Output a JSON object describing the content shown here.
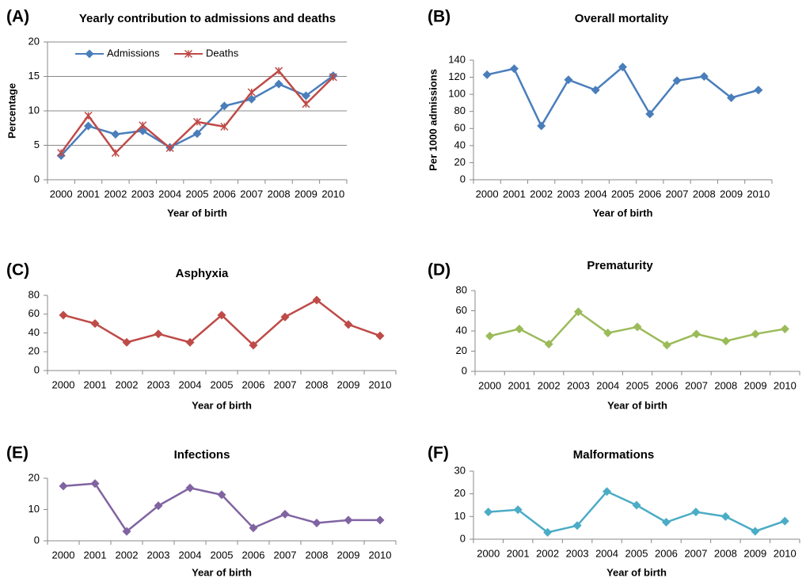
{
  "chart_data": [
    {
      "type": "line",
      "panel": "(A)",
      "title": "Yearly contribution to admissions and deaths",
      "xlabel": "Year of birth",
      "ylabel": "Percentage",
      "categories": [
        "2000",
        "2001",
        "2002",
        "2003",
        "2004",
        "2005",
        "2006",
        "2007",
        "2008",
        "2009",
        "2010"
      ],
      "series": [
        {
          "name": "Admissions",
          "color": "#4a7ebb",
          "marker": "diamond",
          "values": [
            3.5,
            7.8,
            6.6,
            7.1,
            4.7,
            6.7,
            10.7,
            11.7,
            13.9,
            12.2,
            15.1
          ]
        },
        {
          "name": "Deaths",
          "color": "#be4b48",
          "marker": "star",
          "values": [
            3.9,
            9.3,
            3.9,
            7.9,
            4.6,
            8.4,
            7.7,
            12.7,
            15.8,
            11.0,
            14.9
          ]
        }
      ],
      "ylim": [
        0,
        20
      ],
      "yticks": [
        0,
        5,
        10,
        15,
        20
      ],
      "grid": true,
      "legend": "top"
    },
    {
      "type": "line",
      "panel": "(B)",
      "title": "Overall mortality",
      "xlabel": "Year of birth",
      "ylabel": "Per 1000 admissions",
      "categories": [
        "2000",
        "2001",
        "2002",
        "2003",
        "2004",
        "2005",
        "2006",
        "2007",
        "2008",
        "2009",
        "2010"
      ],
      "series": [
        {
          "color": "#4a7ebb",
          "marker": "diamond",
          "values": [
            123,
            130,
            63,
            117,
            105,
            132,
            77,
            116,
            121,
            96,
            105
          ]
        }
      ],
      "ylim": [
        0,
        140
      ],
      "yticks": [
        0,
        20,
        40,
        60,
        80,
        100,
        120,
        140
      ],
      "grid": false
    },
    {
      "type": "line",
      "panel": "(C)",
      "title": "Asphyxia",
      "xlabel": "Year of birth",
      "categories": [
        "2000",
        "2001",
        "2002",
        "2003",
        "2004",
        "2005",
        "2006",
        "2007",
        "2008",
        "2009",
        "2010"
      ],
      "series": [
        {
          "color": "#be4b48",
          "marker": "diamond",
          "values": [
            59,
            50,
            30,
            39,
            30,
            59,
            27,
            57,
            75,
            49,
            37
          ]
        }
      ],
      "ylim": [
        0,
        80
      ],
      "yticks": [
        0,
        20,
        40,
        60,
        80
      ],
      "grid": false
    },
    {
      "type": "line",
      "panel": "(D)",
      "title": "Prematurity",
      "xlabel": "Year of birth",
      "categories": [
        "2000",
        "2001",
        "2002",
        "2003",
        "2004",
        "2005",
        "2006",
        "2007",
        "2008",
        "2009",
        "2010"
      ],
      "series": [
        {
          "color": "#9bbb59",
          "marker": "diamond",
          "values": [
            35,
            42,
            27,
            59,
            38,
            44,
            26,
            37,
            30,
            37,
            42
          ]
        }
      ],
      "ylim": [
        0,
        80
      ],
      "yticks": [
        0,
        20,
        40,
        60,
        80
      ],
      "grid": false
    },
    {
      "type": "line",
      "panel": "(E)",
      "title": "Infections",
      "xlabel": "Year of birth",
      "categories": [
        "2000",
        "2001",
        "2002",
        "2003",
        "2004",
        "2005",
        "2006",
        "2007",
        "2008",
        "2009",
        "2010"
      ],
      "series": [
        {
          "color": "#8064a2",
          "marker": "diamond",
          "values": [
            17.5,
            18.3,
            3,
            11.2,
            16.9,
            14.7,
            4.1,
            8.5,
            5.7,
            6.6,
            6.6
          ]
        }
      ],
      "ylim": [
        0,
        20
      ],
      "yticks": [
        0,
        10,
        20
      ],
      "grid": false
    },
    {
      "type": "line",
      "panel": "(F)",
      "title": "Malformations",
      "xlabel": "Year of birth",
      "categories": [
        "2000",
        "2001",
        "2002",
        "2003",
        "2004",
        "2005",
        "2006",
        "2007",
        "2008",
        "2009",
        "2010"
      ],
      "series": [
        {
          "color": "#4bacc6",
          "marker": "diamond",
          "values": [
            12,
            13,
            3,
            6,
            21,
            15,
            7.5,
            12,
            10,
            3.5,
            8
          ]
        }
      ],
      "ylim": [
        0,
        30
      ],
      "yticks": [
        0,
        10,
        20,
        30
      ],
      "grid": false
    }
  ]
}
